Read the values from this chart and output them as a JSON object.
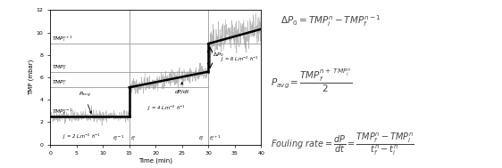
{
  "fig_width": 5.62,
  "fig_height": 1.89,
  "dpi": 100,
  "bg_color": "#ffffff",
  "graph": {
    "xlim": [
      0,
      40
    ],
    "ylim": [
      0,
      12
    ],
    "xticks": [
      0,
      5,
      10,
      15,
      20,
      25,
      30,
      35,
      40
    ],
    "yticks": [
      0,
      2,
      4,
      6,
      8,
      10,
      12
    ],
    "xlabel": "Time (min)",
    "ylabel": "TMP (mbar)",
    "seg1_tmp": 2.5,
    "seg2_start_tmp": 5.1,
    "seg2_end_tmp": 6.5,
    "seg3_start_tmp": 9.0,
    "seg3_end_tmp": 10.3,
    "hline_tmp_i_n1": 9.0,
    "hline_tmp_f_n": 6.5,
    "hline_tmp_i_n": 5.1,
    "noise_amp1": 0.25,
    "noise_amp2": 0.35,
    "noise_amp3": 0.7
  }
}
